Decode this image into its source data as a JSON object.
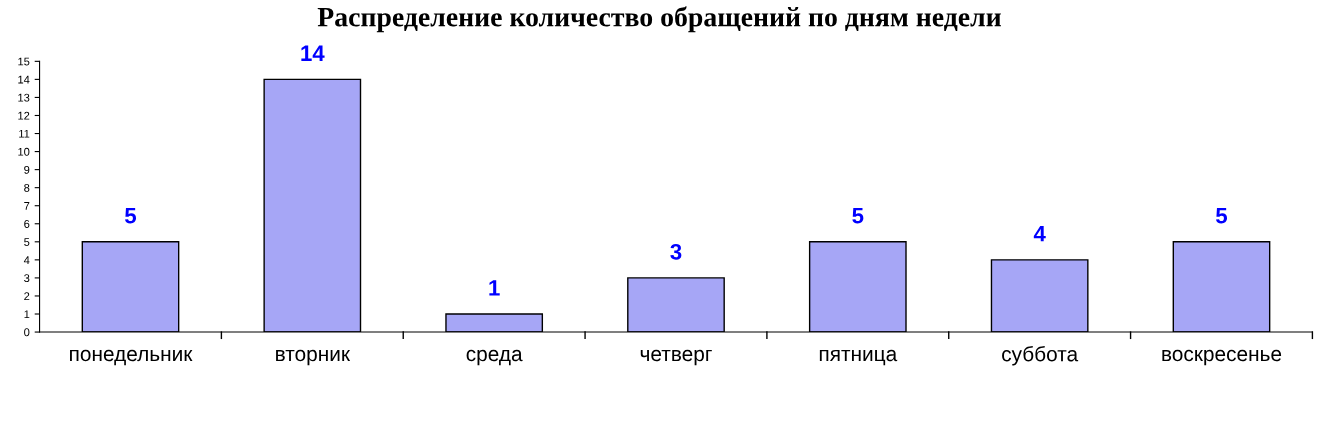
{
  "chart_data": {
    "type": "bar",
    "title": "Распределение количество обращений по дням недели",
    "categories": [
      "понедельник",
      "вторник",
      "среда",
      "четверг",
      "пятница",
      "суббота",
      "воскресенье"
    ],
    "values": [
      5,
      14,
      1,
      3,
      5,
      4,
      5
    ],
    "color": "#a6a6f6",
    "data_labels": true,
    "ylim": [
      0,
      15
    ],
    "yticks": [
      0,
      1,
      2,
      3,
      4,
      5,
      6,
      7,
      8,
      9,
      10,
      11,
      12,
      13,
      14,
      15
    ],
    "grid": false
  }
}
